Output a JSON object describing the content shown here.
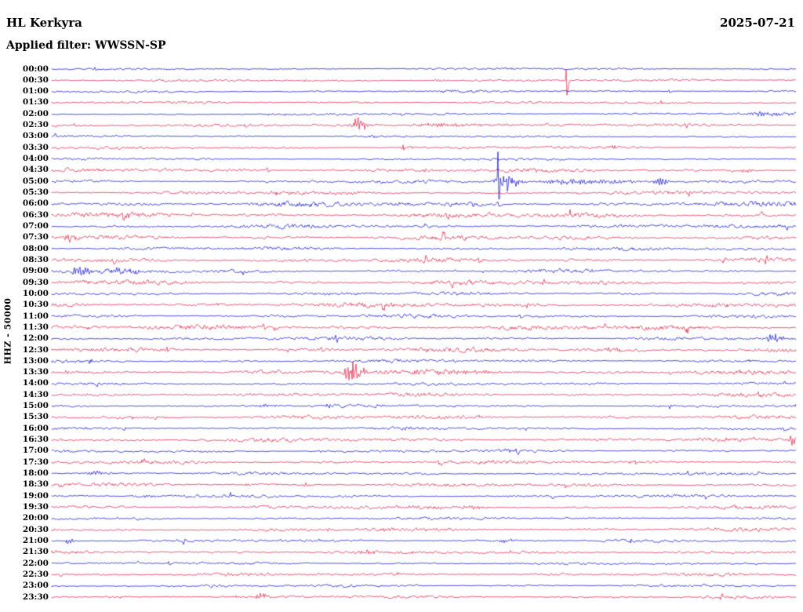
{
  "header": {
    "station": "HL Kerkyra",
    "date": "2025-07-21",
    "filter": "Applied filter: WWSSN-SP"
  },
  "axis": {
    "y_label": "HHZ - 50000"
  },
  "colors": {
    "b": "#0000cd",
    "r": "#dc143c",
    "background": "#ffffff",
    "text": "#000000"
  },
  "chart_data": {
    "type": "line",
    "subtype": "helicorder-seismogram",
    "title": "HL Kerkyra",
    "date": "2025-07-21",
    "filter": "WWSSN-SP",
    "channel_scale_label": "HHZ - 50000",
    "minutes_per_row": 30,
    "row_count": 48,
    "trace_color_pattern": [
      "blue",
      "red"
    ],
    "legend": "none",
    "grid": false,
    "notable_events": [
      {
        "time": "00:30",
        "pos": 0.69,
        "desc": "tall sharp spike"
      },
      {
        "time": "02:30",
        "pos": 0.41,
        "desc": "medium spindle-shaped event burst"
      },
      {
        "time": "03:30",
        "pos": 0.47,
        "desc": "small compact burst"
      },
      {
        "time": "05:00",
        "pos": 0.6,
        "desc": "largest event of day: tall spike plus spindle, secondary burst at 0.82"
      },
      {
        "time": "07:30",
        "pos": 0.02,
        "desc": "small burst near trace start"
      },
      {
        "time": "09:00",
        "pos": 0.04,
        "desc": "small burst near trace start"
      },
      {
        "time": "12:00",
        "pos": 0.97,
        "desc": "burst near trace end"
      },
      {
        "time": "13:30",
        "pos": 0.4,
        "desc": "large spindle-shaped event burst"
      },
      {
        "time": "16:30",
        "pos": 0.99,
        "desc": "burst clipped at right edge"
      },
      {
        "time": "21:00",
        "pos": 0.02,
        "desc": "small burst near trace start"
      },
      {
        "time": "23:30",
        "pos": 0.28,
        "desc": "small burst"
      }
    ],
    "rows": [
      {
        "t": "00:00",
        "c": "b",
        "n": 0.8,
        "ev": [
          {
            "p": 0.058,
            "a": 2.5,
            "w": 0.002,
            "k": "spike"
          },
          {
            "p": 0.6,
            "a": 1.4,
            "w": 0.02
          }
        ]
      },
      {
        "t": "00:30",
        "c": "r",
        "n": 1.0,
        "ev": [
          {
            "p": 0.692,
            "a": 26,
            "w": 0.0015,
            "k": "spike"
          },
          {
            "p": 0.34,
            "a": 1.8,
            "w": 0.01
          },
          {
            "p": 0.52,
            "a": 1.5,
            "w": 0.012
          }
        ]
      },
      {
        "t": "01:00",
        "c": "b",
        "n": 0.9,
        "ev": [
          {
            "p": 0.54,
            "a": 1.6,
            "w": 0.025
          },
          {
            "p": 0.83,
            "a": 2.2,
            "w": 0.002,
            "k": "spike"
          }
        ]
      },
      {
        "t": "01:30",
        "c": "r",
        "n": 1.0,
        "ev": [
          {
            "p": 0.42,
            "a": 1.4,
            "w": 0.012
          }
        ]
      },
      {
        "t": "02:00",
        "c": "b",
        "n": 0.9,
        "ev": [
          {
            "p": 0.96,
            "a": 2.8,
            "w": 0.03
          },
          {
            "p": 0.47,
            "a": 1.4,
            "w": 0.008
          }
        ]
      },
      {
        "t": "02:30",
        "c": "r",
        "n": 1.1,
        "ev": [
          {
            "p": 0.408,
            "a": 9,
            "w": 0.01
          },
          {
            "p": 0.52,
            "a": 2.2,
            "w": 0.06
          },
          {
            "p": 0.26,
            "a": 3,
            "w": 0.002,
            "k": "spike"
          }
        ]
      },
      {
        "t": "03:00",
        "c": "b",
        "n": 0.9,
        "ev": [
          {
            "p": 0.43,
            "a": 1.4,
            "w": 0.01
          }
        ]
      },
      {
        "t": "03:30",
        "c": "r",
        "n": 1.1,
        "ev": [
          {
            "p": 0.474,
            "a": 5,
            "w": 0.006
          }
        ]
      },
      {
        "t": "04:00",
        "c": "b",
        "n": 1.0,
        "ev": []
      },
      {
        "t": "04:30",
        "c": "r",
        "n": 1.6,
        "ev": [
          {
            "p": 0.29,
            "a": 3,
            "w": 0.003,
            "k": "spike"
          },
          {
            "p": 0.93,
            "a": 2.4,
            "w": 0.01
          }
        ]
      },
      {
        "t": "05:00",
        "c": "b",
        "n": 1.3,
        "ev": [
          {
            "p": 0.6,
            "a": 36,
            "w": 0.0015,
            "k": "spike"
          },
          {
            "p": 0.606,
            "a": 12,
            "w": 0.015
          },
          {
            "p": 0.7,
            "a": 3,
            "w": 0.08
          },
          {
            "p": 0.817,
            "a": 5,
            "w": 0.008
          }
        ]
      },
      {
        "t": "05:30",
        "c": "r",
        "n": 1.5,
        "ev": [
          {
            "p": 0.3,
            "a": 2,
            "w": 0.012
          }
        ]
      },
      {
        "t": "06:00",
        "c": "b",
        "n": 2.2,
        "ev": [
          {
            "p": 0.6,
            "a": 3,
            "w": 0.004,
            "k": "spike"
          }
        ]
      },
      {
        "t": "06:30",
        "c": "r",
        "n": 2.0,
        "ev": [
          {
            "p": 0.1,
            "a": 3,
            "w": 0.008
          }
        ]
      },
      {
        "t": "07:00",
        "c": "b",
        "n": 1.6,
        "ev": [
          {
            "p": 0.5,
            "a": 2.4,
            "w": 0.01
          }
        ]
      },
      {
        "t": "07:30",
        "c": "r",
        "n": 1.8,
        "ev": [
          {
            "p": 0.021,
            "a": 6,
            "w": 0.008
          }
        ]
      },
      {
        "t": "08:00",
        "c": "b",
        "n": 1.4,
        "ev": [
          {
            "p": 0.33,
            "a": 2,
            "w": 0.006
          }
        ]
      },
      {
        "t": "08:30",
        "c": "r",
        "n": 1.9,
        "ev": []
      },
      {
        "t": "09:00",
        "c": "b",
        "n": 1.5,
        "ev": [
          {
            "p": 0.037,
            "a": 7,
            "w": 0.012
          },
          {
            "p": 0.09,
            "a": 2.8,
            "w": 0.03
          }
        ]
      },
      {
        "t": "09:30",
        "c": "r",
        "n": 1.9,
        "ev": []
      },
      {
        "t": "10:00",
        "c": "b",
        "n": 1.5,
        "ev": []
      },
      {
        "t": "10:30",
        "c": "r",
        "n": 2.0,
        "ev": []
      },
      {
        "t": "11:00",
        "c": "b",
        "n": 1.5,
        "ev": [
          {
            "p": 0.63,
            "a": 2.4,
            "w": 0.003,
            "k": "spike"
          }
        ]
      },
      {
        "t": "11:30",
        "c": "r",
        "n": 2.0,
        "ev": []
      },
      {
        "t": "12:00",
        "c": "b",
        "n": 1.5,
        "ev": [
          {
            "p": 0.969,
            "a": 7,
            "w": 0.01
          }
        ]
      },
      {
        "t": "12:30",
        "c": "r",
        "n": 2.0,
        "ev": [
          {
            "p": 0.155,
            "a": 4,
            "w": 0.002,
            "k": "spike"
          },
          {
            "p": 0.363,
            "a": 3,
            "w": 0.0025,
            "k": "spike"
          },
          {
            "p": 0.75,
            "a": 2,
            "w": 0.02
          }
        ]
      },
      {
        "t": "13:00",
        "c": "b",
        "n": 1.3,
        "ev": []
      },
      {
        "t": "13:30",
        "c": "r",
        "n": 1.8,
        "ev": [
          {
            "p": 0.4,
            "a": 12,
            "w": 0.013
          },
          {
            "p": 0.52,
            "a": 2.6,
            "w": 0.07
          }
        ]
      },
      {
        "t": "14:00",
        "c": "b",
        "n": 1.2,
        "ev": []
      },
      {
        "t": "14:30",
        "c": "r",
        "n": 1.6,
        "ev": [
          {
            "p": 0.95,
            "a": 2.4,
            "w": 0.003,
            "k": "spike"
          }
        ]
      },
      {
        "t": "15:00",
        "c": "b",
        "n": 1.2,
        "ev": [
          {
            "p": 0.28,
            "a": 1.8,
            "w": 0.015
          }
        ]
      },
      {
        "t": "15:30",
        "c": "r",
        "n": 1.6,
        "ev": []
      },
      {
        "t": "16:00",
        "c": "b",
        "n": 1.2,
        "ev": [
          {
            "p": 0.985,
            "a": 2.4,
            "w": 0.01
          }
        ]
      },
      {
        "t": "16:30",
        "c": "r",
        "n": 1.6,
        "ev": [
          {
            "p": 0.995,
            "a": 6,
            "w": 0.008
          }
        ]
      },
      {
        "t": "17:00",
        "c": "b",
        "n": 1.2,
        "ev": [
          {
            "p": 0.36,
            "a": 1.8,
            "w": 0.008
          },
          {
            "p": 0.61,
            "a": 1.8,
            "w": 0.008
          }
        ]
      },
      {
        "t": "17:30",
        "c": "r",
        "n": 1.5,
        "ev": [
          {
            "p": 0.52,
            "a": 3,
            "w": 0.003,
            "k": "spike"
          },
          {
            "p": 0.785,
            "a": 3,
            "w": 0.003,
            "k": "spike"
          }
        ]
      },
      {
        "t": "18:00",
        "c": "b",
        "n": 1.2,
        "ev": [
          {
            "p": 0.06,
            "a": 1.8,
            "w": 0.02
          },
          {
            "p": 0.855,
            "a": 3,
            "w": 0.003,
            "k": "spike"
          }
        ]
      },
      {
        "t": "18:30",
        "c": "r",
        "n": 1.5,
        "ev": [
          {
            "p": 0.34,
            "a": 1.8,
            "w": 0.01
          },
          {
            "p": 0.69,
            "a": 3,
            "w": 0.003,
            "k": "spike"
          }
        ]
      },
      {
        "t": "19:00",
        "c": "b",
        "n": 1.2,
        "ev": [
          {
            "p": 0.12,
            "a": 1.8,
            "w": 0.02
          }
        ]
      },
      {
        "t": "19:30",
        "c": "r",
        "n": 1.5,
        "ev": [
          {
            "p": 0.56,
            "a": 1.8,
            "w": 0.02
          }
        ]
      },
      {
        "t": "20:00",
        "c": "b",
        "n": 1.1,
        "ev": []
      },
      {
        "t": "20:30",
        "c": "r",
        "n": 1.4,
        "ev": [
          {
            "p": 0.44,
            "a": 1.8,
            "w": 0.01
          }
        ]
      },
      {
        "t": "21:00",
        "c": "b",
        "n": 1.1,
        "ev": [
          {
            "p": 0.021,
            "a": 4,
            "w": 0.006
          },
          {
            "p": 0.6,
            "a": 1.8,
            "w": 0.02
          }
        ]
      },
      {
        "t": "21:30",
        "c": "r",
        "n": 1.4,
        "ev": [
          {
            "p": 0.42,
            "a": 1.8,
            "w": 0.015
          }
        ]
      },
      {
        "t": "22:00",
        "c": "b",
        "n": 1.0,
        "ev": [
          {
            "p": 0.158,
            "a": 3,
            "w": 0.002,
            "k": "spike"
          },
          {
            "p": 0.62,
            "a": 1.6,
            "w": 0.01
          }
        ]
      },
      {
        "t": "22:30",
        "c": "r",
        "n": 1.3,
        "ev": []
      },
      {
        "t": "23:00",
        "c": "b",
        "n": 1.0,
        "ev": []
      },
      {
        "t": "23:30",
        "c": "r",
        "n": 1.2,
        "ev": [
          {
            "p": 0.279,
            "a": 4,
            "w": 0.008
          }
        ]
      }
    ]
  }
}
